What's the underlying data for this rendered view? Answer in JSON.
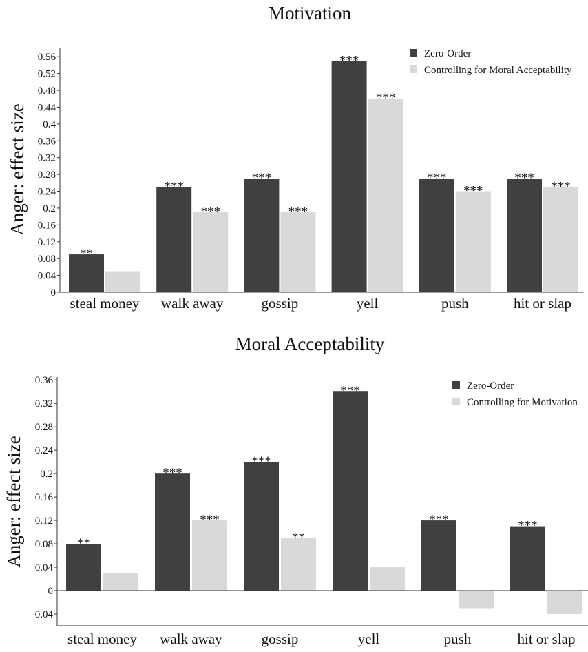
{
  "charts": [
    {
      "title": "Motivation",
      "ylabel": "Anger: effect size",
      "chart_data": {
        "type": "bar",
        "categories": [
          "steal money",
          "walk away",
          "gossip",
          "yell",
          "push",
          "hit or slap"
        ],
        "series": [
          {
            "name": "Zero-Order",
            "color": "#404040",
            "values": [
              0.09,
              0.25,
              0.27,
              0.55,
              0.27,
              0.27
            ],
            "stars": [
              "**",
              "***",
              "***",
              "***",
              "***",
              "***"
            ]
          },
          {
            "name": "Controlling for Moral Acceptability",
            "color": "#d9d9d9",
            "values": [
              0.05,
              0.19,
              0.19,
              0.46,
              0.24,
              0.25
            ],
            "stars": [
              "",
              "***",
              "***",
              "***",
              "***",
              "***"
            ]
          }
        ],
        "ylim": [
          0,
          0.58
        ],
        "yticks": [
          "0",
          "0.04",
          "0.08",
          "0.12",
          "0.16",
          "0.2",
          "0.24",
          "0.28",
          "0.32",
          "0.36",
          "0.4",
          "0.44",
          "0.48",
          "0.52",
          "0.56"
        ],
        "legend": "top-right",
        "grid": false
      }
    },
    {
      "title": "Moral Acceptability",
      "ylabel": "Anger: effect size",
      "chart_data": {
        "type": "bar",
        "categories": [
          "steal money",
          "walk away",
          "gossip",
          "yell",
          "push",
          "hit or slap"
        ],
        "series": [
          {
            "name": "Zero-Order",
            "color": "#404040",
            "values": [
              0.08,
              0.2,
              0.22,
              0.34,
              0.12,
              0.11
            ],
            "stars": [
              "**",
              "***",
              "***",
              "***",
              "***",
              "***"
            ]
          },
          {
            "name": "Controlling for Motivation",
            "color": "#d9d9d9",
            "values": [
              0.03,
              0.12,
              0.09,
              0.04,
              -0.03,
              -0.04
            ],
            "stars": [
              "",
              "***",
              "**",
              "",
              "",
              ""
            ]
          }
        ],
        "ylim": [
          -0.06,
          0.365
        ],
        "yticks": [
          "-0.04",
          "0",
          "0.04",
          "0.08",
          "0.12",
          "0.16",
          "0.2",
          "0.24",
          "0.28",
          "0.32",
          "0.36"
        ],
        "legend": "top-right",
        "grid": false
      }
    }
  ]
}
